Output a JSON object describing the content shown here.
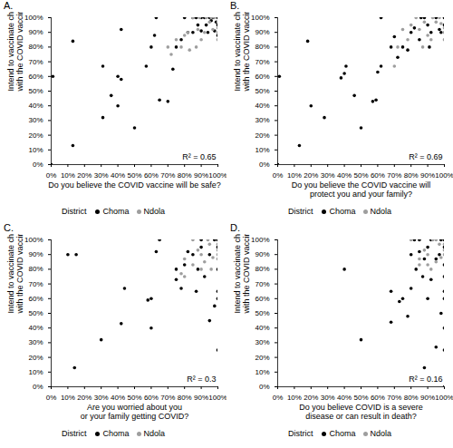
{
  "chart_data": [
    {
      "type": "scatter",
      "title": "A.",
      "x_label": "Do you believe the COVID vaccine will be safe?",
      "y_label": "Intend to vaccinate child\nwith the COVID vaccine",
      "annotation": "R² = 0.65",
      "legend": "bottom",
      "legend_title": "District",
      "marker": "circle",
      "xlim": [
        0,
        100
      ],
      "ylim": [
        0,
        100
      ],
      "xticks": [
        {
          "value": 0,
          "label": "0%"
        },
        {
          "value": 10,
          "label": "10%"
        },
        {
          "value": 20,
          "label": "20%"
        },
        {
          "value": 30,
          "label": "30%"
        },
        {
          "value": 40,
          "label": "40%"
        },
        {
          "value": 50,
          "label": "50%"
        },
        {
          "value": 60,
          "label": "60%"
        },
        {
          "value": 70,
          "label": "70%"
        },
        {
          "value": 80,
          "label": "80%"
        },
        {
          "value": 90,
          "label": "90%"
        },
        {
          "value": 100,
          "label": "100%"
        }
      ],
      "yticks": [
        {
          "value": 0,
          "label": "0%"
        },
        {
          "value": 10,
          "label": "10%"
        },
        {
          "value": 20,
          "label": "20%"
        },
        {
          "value": 30,
          "label": "30%"
        },
        {
          "value": 40,
          "label": "40%"
        },
        {
          "value": 50,
          "label": "50%"
        },
        {
          "value": 60,
          "label": "60%"
        },
        {
          "value": 70,
          "label": "70%"
        },
        {
          "value": 80,
          "label": "80%"
        },
        {
          "value": 90,
          "label": "90%"
        },
        {
          "value": 100,
          "label": "100%"
        }
      ],
      "series": [
        {
          "name": "Choma",
          "color": "#000000",
          "x": [
            0,
            1,
            13,
            13,
            31,
            31,
            36,
            40,
            40,
            42,
            42,
            50,
            57,
            60,
            62,
            63,
            65,
            70,
            73,
            75,
            78,
            80,
            82,
            85,
            85,
            88,
            90,
            90,
            92,
            93,
            95,
            96,
            97,
            98,
            100,
            100,
            100,
            87,
            94,
            99
          ],
          "values": [
            0,
            60,
            13,
            84,
            32,
            67,
            47,
            40,
            60,
            58,
            92,
            25,
            67,
            80,
            88,
            100,
            44,
            43,
            65,
            80,
            85,
            100,
            90,
            90,
            100,
            95,
            100,
            91,
            100,
            95,
            100,
            98,
            100,
            91,
            100,
            95,
            88,
            100,
            90,
            97
          ]
        },
        {
          "name": "Ndola",
          "color": "#9e9e9e",
          "x": [
            70,
            72,
            75,
            78,
            80,
            83,
            85,
            87,
            88,
            90,
            92,
            95,
            97,
            98,
            100,
            100,
            100,
            100,
            96,
            93,
            89,
            82
          ],
          "values": [
            80,
            75,
            85,
            80,
            88,
            78,
            100,
            80,
            92,
            85,
            90,
            97,
            92,
            100,
            90,
            93,
            97,
            85,
            100,
            100,
            100,
            90
          ]
        }
      ]
    },
    {
      "type": "scatter",
      "title": "B.",
      "x_label": "Do you believe the COVID vaccine will\nprotect you and your family?",
      "y_label": "Intend to vaccinate child\nwith the COVID vaccine",
      "annotation": "R² = 0.69",
      "legend": "bottom",
      "legend_title": "District",
      "marker": "circle",
      "xlim": [
        0,
        100
      ],
      "ylim": [
        0,
        100
      ],
      "xticks": [
        {
          "value": 0,
          "label": "0%"
        },
        {
          "value": 10,
          "label": "10%"
        },
        {
          "value": 20,
          "label": "20%"
        },
        {
          "value": 30,
          "label": "30%"
        },
        {
          "value": 40,
          "label": "40%"
        },
        {
          "value": 50,
          "label": "50%"
        },
        {
          "value": 60,
          "label": "60%"
        },
        {
          "value": 70,
          "label": "70%"
        },
        {
          "value": 80,
          "label": "80%"
        },
        {
          "value": 90,
          "label": "90%"
        },
        {
          "value": 100,
          "label": "100%"
        }
      ],
      "yticks": [
        {
          "value": 0,
          "label": "0%"
        },
        {
          "value": 10,
          "label": "10%"
        },
        {
          "value": 20,
          "label": "20%"
        },
        {
          "value": 30,
          "label": "30%"
        },
        {
          "value": 40,
          "label": "40%"
        },
        {
          "value": 50,
          "label": "50%"
        },
        {
          "value": 60,
          "label": "60%"
        },
        {
          "value": 70,
          "label": "70%"
        },
        {
          "value": 80,
          "label": "80%"
        },
        {
          "value": 90,
          "label": "90%"
        },
        {
          "value": 100,
          "label": "100%"
        }
      ],
      "series": [
        {
          "name": "Choma",
          "color": "#000000",
          "x": [
            0,
            1,
            13,
            18,
            20,
            28,
            38,
            40,
            41,
            46,
            50,
            57,
            59,
            60,
            62,
            62,
            68,
            70,
            72,
            75,
            78,
            80,
            82,
            85,
            88,
            90,
            92,
            95,
            97,
            100,
            100,
            98,
            86,
            91
          ],
          "values": [
            0,
            60,
            13,
            84,
            40,
            32,
            59,
            62,
            67,
            47,
            25,
            43,
            44,
            63,
            67,
            100,
            80,
            87,
            73,
            80,
            78,
            90,
            93,
            85,
            100,
            95,
            90,
            100,
            92,
            100,
            95,
            90,
            100,
            80
          ]
        },
        {
          "name": "Ndola",
          "color": "#9e9e9e",
          "x": [
            70,
            72,
            75,
            78,
            80,
            83,
            85,
            87,
            90,
            93,
            95,
            97,
            100,
            100,
            88,
            92,
            98,
            100
          ],
          "values": [
            67,
            80,
            92,
            85,
            95,
            100,
            92,
            80,
            88,
            100,
            97,
            100,
            93,
            90,
            97,
            85,
            96,
            85
          ]
        }
      ]
    },
    {
      "type": "scatter",
      "title": "C.",
      "x_label": "Are you worried about you\nor your family getting COVID?",
      "y_label": "Intend to vaccinate child\nwith the COVID vaccine",
      "annotation": "R² = 0.3",
      "legend": "bottom",
      "legend_title": "District",
      "marker": "circle",
      "xlim": [
        0,
        100
      ],
      "ylim": [
        0,
        100
      ],
      "xticks": [
        {
          "value": 0,
          "label": "0%"
        },
        {
          "value": 10,
          "label": "10%"
        },
        {
          "value": 20,
          "label": "20%"
        },
        {
          "value": 30,
          "label": "30%"
        },
        {
          "value": 40,
          "label": "40%"
        },
        {
          "value": 50,
          "label": "50%"
        },
        {
          "value": 60,
          "label": "60%"
        },
        {
          "value": 70,
          "label": "70%"
        },
        {
          "value": 80,
          "label": "80%"
        },
        {
          "value": 90,
          "label": "90%"
        },
        {
          "value": 100,
          "label": "100%"
        }
      ],
      "yticks": [
        {
          "value": 0,
          "label": "0%"
        },
        {
          "value": 10,
          "label": "10%"
        },
        {
          "value": 20,
          "label": "20%"
        },
        {
          "value": 30,
          "label": "30%"
        },
        {
          "value": 40,
          "label": "40%"
        },
        {
          "value": 50,
          "label": "50%"
        },
        {
          "value": 60,
          "label": "60%"
        },
        {
          "value": 70,
          "label": "70%"
        },
        {
          "value": 80,
          "label": "80%"
        },
        {
          "value": 90,
          "label": "90%"
        },
        {
          "value": 100,
          "label": "100%"
        }
      ],
      "series": [
        {
          "name": "Choma",
          "color": "#000000",
          "x": [
            10,
            14,
            15,
            30,
            42,
            44,
            58,
            60,
            60,
            63,
            65,
            75,
            75,
            78,
            80,
            82,
            85,
            88,
            90,
            90,
            92,
            95,
            95,
            98,
            100,
            100,
            100,
            100,
            100,
            100,
            98,
            87
          ],
          "values": [
            90,
            13,
            90,
            32,
            43,
            67,
            59,
            60,
            40,
            92,
            100,
            73,
            80,
            67,
            83,
            92,
            90,
            80,
            100,
            95,
            75,
            90,
            45,
            55,
            25,
            60,
            65,
            80,
            95,
            100,
            100,
            65
          ]
        },
        {
          "name": "Ndola",
          "color": "#9e9e9e",
          "x": [
            78,
            80,
            85,
            85,
            88,
            90,
            92,
            94,
            95,
            97,
            100,
            100,
            100,
            100,
            96,
            90,
            80
          ],
          "values": [
            77,
            87,
            83,
            100,
            93,
            90,
            85,
            100,
            97,
            88,
            90,
            87,
            93,
            97,
            80,
            80,
            75
          ]
        }
      ]
    },
    {
      "type": "scatter",
      "title": "D.",
      "x_label": "Do you believe COVID is a severe\ndisease or can result in death?",
      "y_label": "Intend to vaccinate child\nwith the COVID vaccine",
      "annotation": "R² = 0.16",
      "legend": "bottom",
      "legend_title": "District",
      "marker": "circle",
      "xlim": [
        0,
        100
      ],
      "ylim": [
        0,
        100
      ],
      "xticks": [
        {
          "value": 0,
          "label": "0%"
        },
        {
          "value": 10,
          "label": "10%"
        },
        {
          "value": 20,
          "label": "20%"
        },
        {
          "value": 30,
          "label": "30%"
        },
        {
          "value": 40,
          "label": "40%"
        },
        {
          "value": 50,
          "label": "50%"
        },
        {
          "value": 60,
          "label": "60%"
        },
        {
          "value": 70,
          "label": "70%"
        },
        {
          "value": 80,
          "label": "80%"
        },
        {
          "value": 90,
          "label": "90%"
        },
        {
          "value": 100,
          "label": "100%"
        }
      ],
      "yticks": [
        {
          "value": 0,
          "label": "0%"
        },
        {
          "value": 10,
          "label": "10%"
        },
        {
          "value": 20,
          "label": "20%"
        },
        {
          "value": 30,
          "label": "30%"
        },
        {
          "value": 40,
          "label": "40%"
        },
        {
          "value": 50,
          "label": "50%"
        },
        {
          "value": 60,
          "label": "60%"
        },
        {
          "value": 70,
          "label": "70%"
        },
        {
          "value": 80,
          "label": "80%"
        },
        {
          "value": 90,
          "label": "90%"
        },
        {
          "value": 100,
          "label": "100%"
        }
      ],
      "series": [
        {
          "name": "Choma",
          "color": "#000000",
          "x": [
            40,
            50,
            68,
            68,
            73,
            75,
            78,
            80,
            80,
            82,
            83,
            85,
            85,
            87,
            88,
            88,
            90,
            90,
            92,
            92,
            95,
            95,
            97,
            98,
            100,
            100,
            100,
            100,
            100,
            100,
            100,
            100,
            100,
            98
          ],
          "values": [
            80,
            32,
            65,
            44,
            58,
            60,
            48,
            67,
            90,
            100,
            80,
            92,
            100,
            75,
            13,
            87,
            60,
            95,
            73,
            100,
            87,
            27,
            90,
            50,
            0,
            25,
            40,
            60,
            65,
            75,
            83,
            95,
            100,
            100
          ]
        },
        {
          "name": "Ndola",
          "color": "#9e9e9e",
          "x": [
            80,
            85,
            85,
            88,
            90,
            92,
            93,
            95,
            97,
            98,
            100,
            100,
            100,
            90,
            95
          ],
          "values": [
            100,
            87,
            83,
            93,
            90,
            80,
            100,
            85,
            97,
            88,
            90,
            93,
            97,
            83,
            100
          ]
        }
      ]
    }
  ]
}
